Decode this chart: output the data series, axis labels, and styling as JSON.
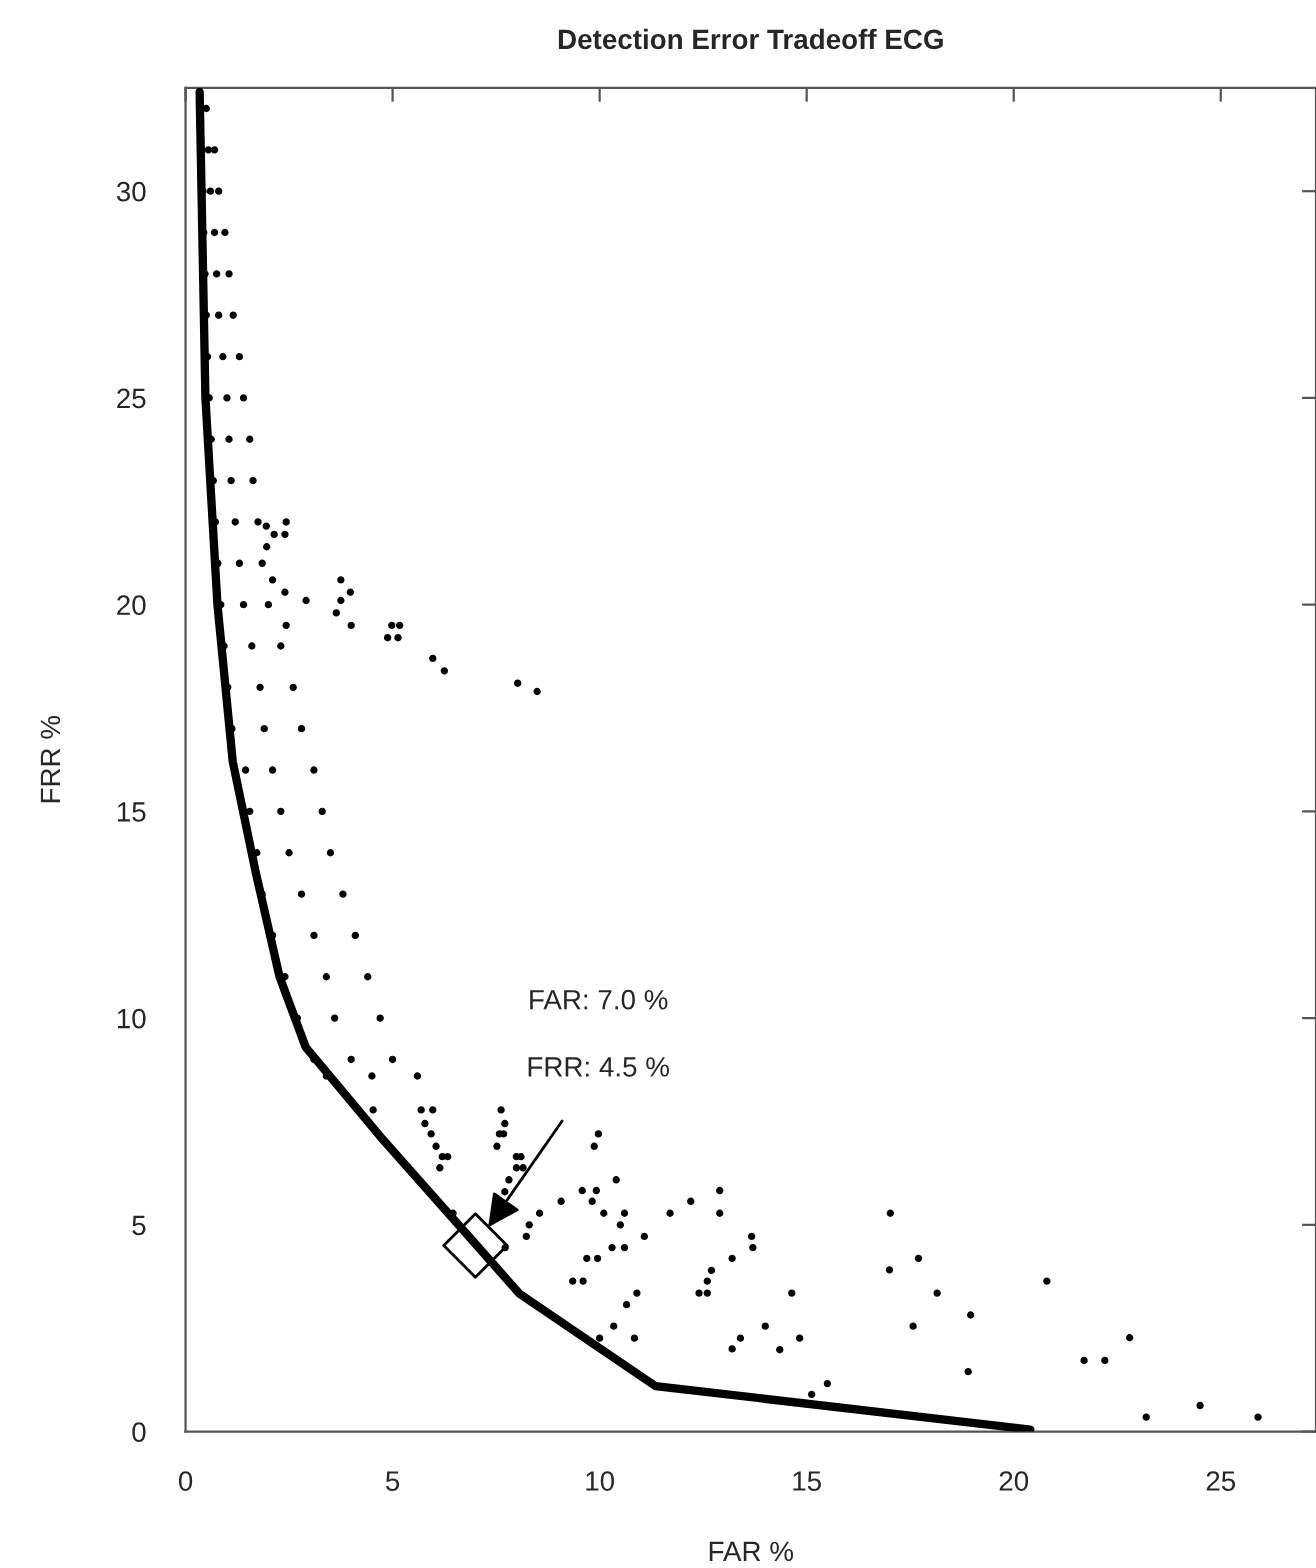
{
  "chart_data": {
    "type": "scatter",
    "title": "Detection Error Tradeoff ECG",
    "xlabel": "FAR %",
    "ylabel": "FRR %",
    "xlim": [
      0,
      27.3
    ],
    "ylim": [
      0,
      32.5
    ],
    "xticks": [
      0,
      5,
      10,
      15,
      20,
      25
    ],
    "yticks": [
      0,
      5,
      10,
      15,
      20,
      25,
      30
    ],
    "grid": false,
    "legend": false,
    "series": [
      {
        "marker": "circle",
        "color": "#000000",
        "x": [
          0.5,
          0.4,
          0.55,
          0.7,
          0.42,
          0.6,
          0.8,
          0.44,
          0.7,
          0.95,
          0.47,
          0.75,
          1.05,
          0.5,
          0.8,
          1.15,
          0.53,
          0.9,
          1.3,
          0.57,
          1.0,
          1.4,
          0.62,
          1.05,
          1.55,
          0.67,
          1.1,
          1.63,
          0.72,
          1.2,
          1.75,
          0.78,
          1.3,
          1.85,
          0.85,
          1.4,
          2.0,
          0.93,
          1.6,
          2.3,
          1.02,
          1.8,
          2.6,
          1.12,
          1.9,
          2.8,
          1.45,
          2.1,
          3.1,
          1.55,
          2.3,
          3.3,
          1.72,
          2.5,
          3.5,
          1.85,
          2.8,
          3.8,
          2.1,
          3.1,
          4.1,
          2.4,
          3.4,
          4.4,
          2.7,
          3.6,
          4.7,
          3.1,
          4.0,
          5.0,
          3.4,
          4.5,
          5.6,
          1.95,
          2.43,
          2.14,
          2.4,
          1.96,
          2.1,
          2.4,
          2.91,
          3.75,
          3.98,
          3.75,
          3.64,
          4.0,
          2.43,
          4.98,
          5.17,
          4.88,
          5.13,
          5.97,
          6.25,
          8.02,
          8.49,
          4.53,
          5.69,
          5.97,
          5.78,
          5.93,
          6.05,
          6.2,
          6.33,
          6.14,
          7.62,
          7.71,
          7.58,
          7.68,
          7.52,
          7.99,
          8.1,
          7.99,
          8.15,
          7.81,
          7.71,
          6.46,
          8.55,
          8.3,
          8.23,
          7.72,
          9.07,
          9.58,
          9.92,
          9.82,
          10.4,
          10.1,
          10.6,
          10.5,
          11.08,
          10.3,
          10.6,
          9.69,
          9.95,
          9.35,
          9.6,
          10.9,
          10.65,
          10.34,
          10.0,
          10.84,
          9.87,
          9.97,
          11.7,
          12.2,
          12.9,
          12.9,
          13.67,
          13.7,
          13.2,
          12.7,
          12.6,
          12.4,
          12.6,
          13.4,
          13.2,
          14.0,
          14.35,
          14.64,
          14.83,
          15.12,
          15.5,
          17.02,
          17.0,
          17.7,
          18.15,
          17.57,
          18.96,
          18.9,
          20.8,
          21.7,
          22.2,
          22.8,
          23.2,
          24.5,
          25.9
        ],
        "values": [
          32,
          31,
          31,
          31,
          30,
          30,
          30,
          29,
          29,
          29,
          28,
          28,
          28,
          27,
          27,
          27,
          26,
          26,
          26,
          25,
          25,
          25,
          24,
          24,
          24,
          23,
          23,
          23,
          22,
          22,
          22,
          21,
          21,
          21,
          20,
          20,
          20,
          19,
          19,
          19,
          18,
          18,
          18,
          17,
          17,
          17,
          16,
          16,
          16,
          15,
          15,
          15,
          14,
          14,
          14,
          13,
          13,
          13,
          12,
          12,
          12,
          11,
          11,
          11,
          10,
          10,
          10,
          9,
          9,
          9,
          8.6,
          8.6,
          8.6,
          21.9,
          22.0,
          21.7,
          21.7,
          21.4,
          20.6,
          20.3,
          20.1,
          20.6,
          20.3,
          20.1,
          19.8,
          19.5,
          19.5,
          19.5,
          19.5,
          19.2,
          19.2,
          18.7,
          18.4,
          18.1,
          17.9,
          7.78,
          7.78,
          7.78,
          7.45,
          7.2,
          6.9,
          6.65,
          6.65,
          6.38,
          7.78,
          7.45,
          7.2,
          7.2,
          6.9,
          6.65,
          6.65,
          6.38,
          6.38,
          6.09,
          5.8,
          5.28,
          5.28,
          5.0,
          4.72,
          4.45,
          5.57,
          5.83,
          5.83,
          5.57,
          6.09,
          5.28,
          5.28,
          5.0,
          4.72,
          4.45,
          4.45,
          4.19,
          4.19,
          3.64,
          3.64,
          3.35,
          3.07,
          2.55,
          2.26,
          2.26,
          6.9,
          7.2,
          5.28,
          5.57,
          5.83,
          5.28,
          4.72,
          4.45,
          4.19,
          3.9,
          3.64,
          3.35,
          3.35,
          2.26,
          2.0,
          2.55,
          1.98,
          3.35,
          2.26,
          0.9,
          1.16,
          5.28,
          3.91,
          4.19,
          3.35,
          2.55,
          2.82,
          1.45,
          3.64,
          1.72,
          1.72,
          2.27,
          0.35,
          0.63,
          0.35
        ]
      },
      {
        "type": "line",
        "marker": "none",
        "line_style": "solid",
        "color": "#000000",
        "x": [
          0.34,
          0.48,
          0.77,
          1.14,
          1.7,
          2.27,
          2.9,
          4.69,
          8.07,
          11.35,
          20.4
        ],
        "values": [
          32.4,
          25,
          20,
          16.2,
          13.5,
          11.0,
          9.3,
          7.15,
          3.33,
          1.1,
          0.05
        ]
      },
      {
        "marker": "diamond",
        "color": "#000000",
        "x": [
          7.0
        ],
        "values": [
          4.5
        ]
      }
    ],
    "annotations": [
      "FAR: 7.0 %",
      "FRR: 4.5 %"
    ]
  }
}
